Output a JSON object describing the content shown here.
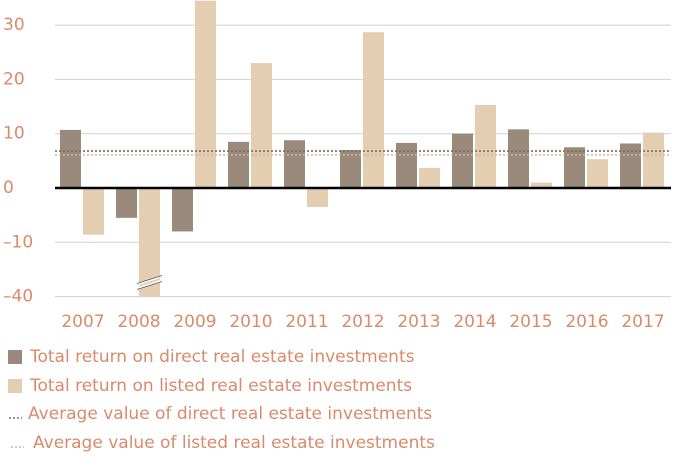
{
  "chart_data": {
    "type": "bar",
    "categories": [
      "2007",
      "2008",
      "2009",
      "2010",
      "2011",
      "2012",
      "2013",
      "2014",
      "2015",
      "2016",
      "2017"
    ],
    "series": [
      {
        "name": "Total return on direct real estate investments",
        "color": "#9a8a7b",
        "values": [
          10.7,
          -5.5,
          -8,
          8.5,
          8.8,
          7,
          8.3,
          10,
          10.8,
          7.5,
          8.2
        ]
      },
      {
        "name": "Total return on listed real estate investments",
        "color": "#e3ceb2",
        "values": [
          -8.6,
          -40,
          34.5,
          23,
          -3.5,
          28.7,
          3.7,
          15.3,
          1,
          5.3,
          10.2
        ]
      }
    ],
    "averages": [
      {
        "name": "Average value of direct real estate investments",
        "color": "#7d6e62",
        "value": 6.8
      },
      {
        "name": "Average value of listed real estate investments",
        "color": "#cdb79a",
        "value": 6.1
      }
    ],
    "ylim": [
      -40,
      35
    ],
    "axis_break": [
      -10,
      -40
    ],
    "yticks": [
      30,
      20,
      10,
      0,
      {
        "value": -10,
        "label": "–10"
      },
      {
        "value": -40,
        "label": "–40"
      }
    ],
    "grid": true
  }
}
